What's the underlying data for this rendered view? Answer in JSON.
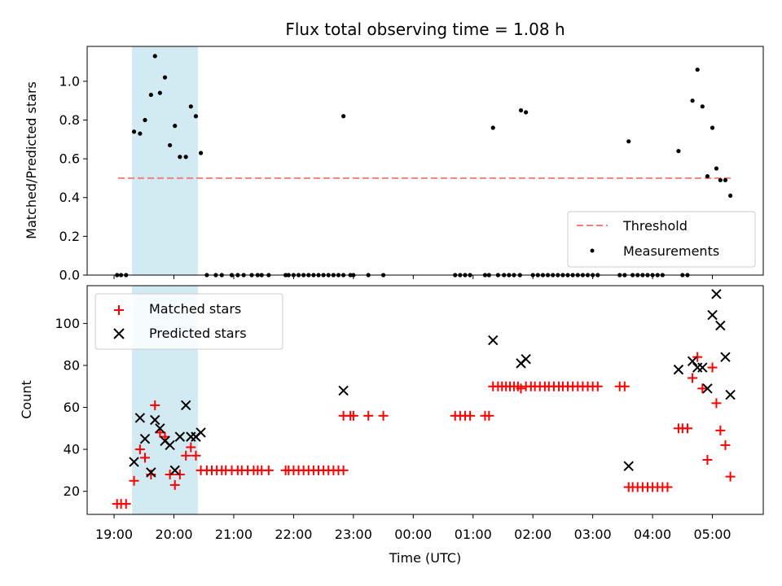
{
  "chart_data": {
    "title": "Flux total observing time = 1.08 h",
    "xlabel": "Time (UTC)",
    "x_tick_labels": [
      "19:00",
      "20:00",
      "21:00",
      "22:00",
      "23:00",
      "00:00",
      "01:00",
      "02:00",
      "03:00",
      "04:00",
      "05:00"
    ],
    "shaded_interval": [
      "19:18",
      "20:24"
    ],
    "colors": {
      "matched": "#ff0000",
      "predicted": "#000000",
      "threshold": "#f08080",
      "shade": "#add8e6"
    },
    "panels": [
      {
        "type": "scatter",
        "ylabel": "Matched/Predicted stars",
        "ylim": [
          0,
          1.18
        ],
        "y_tick_labels": [
          "0.0",
          "0.2",
          "0.4",
          "0.6",
          "0.8",
          "1.0"
        ],
        "legend": {
          "placement": "lower right",
          "entries": [
            "Threshold",
            "Measurements"
          ]
        },
        "threshold": 0.5,
        "series": [
          {
            "name": "Measurements",
            "points": [
              [
                "19:03",
                0
              ],
              [
                "19:07",
                0
              ],
              [
                "19:12",
                0
              ],
              [
                "19:20",
                0.74
              ],
              [
                "19:26",
                0.73
              ],
              [
                "19:31",
                0.8
              ],
              [
                "19:37",
                0.93
              ],
              [
                "19:41",
                1.13
              ],
              [
                "19:46",
                0.94
              ],
              [
                "19:51",
                1.02
              ],
              [
                "19:56",
                0.67
              ],
              [
                "20:01",
                0.77
              ],
              [
                "20:06",
                0.61
              ],
              [
                "20:12",
                0.61
              ],
              [
                "20:17",
                0.87
              ],
              [
                "20:22",
                0.82
              ],
              [
                "20:27",
                0.63
              ],
              [
                "20:33",
                0
              ],
              [
                "20:42",
                0
              ],
              [
                "20:48",
                0
              ],
              [
                "20:58",
                0
              ],
              [
                "21:04",
                0
              ],
              [
                "21:10",
                0
              ],
              [
                "21:18",
                0
              ],
              [
                "21:24",
                0
              ],
              [
                "21:28",
                0
              ],
              [
                "21:35",
                0
              ],
              [
                "21:52",
                0
              ],
              [
                "21:55",
                0
              ],
              [
                "22:00",
                0
              ],
              [
                "22:05",
                0
              ],
              [
                "22:10",
                0
              ],
              [
                "22:15",
                0
              ],
              [
                "22:20",
                0
              ],
              [
                "22:25",
                0
              ],
              [
                "22:30",
                0
              ],
              [
                "22:35",
                0
              ],
              [
                "22:40",
                0
              ],
              [
                "22:45",
                0
              ],
              [
                "22:50",
                0
              ],
              [
                "22:50",
                0.82
              ],
              [
                "22:57",
                0
              ],
              [
                "23:00",
                0
              ],
              [
                "23:15",
                0
              ],
              [
                "23:30",
                0
              ],
              [
                "00:42",
                0
              ],
              [
                "00:47",
                0
              ],
              [
                "00:52",
                0
              ],
              [
                "00:57",
                0
              ],
              [
                "01:12",
                0
              ],
              [
                "01:16",
                0
              ],
              [
                "01:20",
                0.76
              ],
              [
                "01:25",
                0
              ],
              [
                "01:31",
                0
              ],
              [
                "01:36",
                0
              ],
              [
                "01:41",
                0
              ],
              [
                "01:47",
                0
              ],
              [
                "01:48",
                0.85
              ],
              [
                "01:53",
                0.84
              ],
              [
                "02:00",
                0
              ],
              [
                "02:05",
                0
              ],
              [
                "02:10",
                0
              ],
              [
                "02:15",
                0
              ],
              [
                "02:20",
                0
              ],
              [
                "02:25",
                0
              ],
              [
                "02:30",
                0
              ],
              [
                "02:35",
                0
              ],
              [
                "02:40",
                0
              ],
              [
                "02:45",
                0
              ],
              [
                "02:50",
                0
              ],
              [
                "02:55",
                0
              ],
              [
                "03:00",
                0
              ],
              [
                "03:05",
                0
              ],
              [
                "03:27",
                0
              ],
              [
                "03:32",
                0
              ],
              [
                "03:36",
                0.69
              ],
              [
                "03:40",
                0
              ],
              [
                "03:45",
                0
              ],
              [
                "03:50",
                0
              ],
              [
                "03:55",
                0
              ],
              [
                "04:00",
                0
              ],
              [
                "04:05",
                0
              ],
              [
                "04:10",
                0
              ],
              [
                "04:26",
                0.64
              ],
              [
                "04:30",
                0
              ],
              [
                "04:35",
                0
              ],
              [
                "04:40",
                0.9
              ],
              [
                "04:45",
                1.06
              ],
              [
                "04:50",
                0.87
              ],
              [
                "04:55",
                0.51
              ],
              [
                "05:00",
                0.76
              ],
              [
                "05:04",
                0.55
              ],
              [
                "05:08",
                0.49
              ],
              [
                "05:13",
                0.49
              ],
              [
                "05:18",
                0.41
              ]
            ]
          }
        ]
      },
      {
        "type": "scatter",
        "ylabel": "Count",
        "ylim": [
          9,
          118
        ],
        "y_tick_labels": [
          "20",
          "40",
          "60",
          "80",
          "100"
        ],
        "legend": {
          "placement": "upper left",
          "entries": [
            "Matched stars",
            "Predicted stars"
          ]
        },
        "series": [
          {
            "name": "Matched stars",
            "marker": "+",
            "points": [
              [
                "19:03",
                14
              ],
              [
                "19:07",
                14
              ],
              [
                "19:12",
                14
              ],
              [
                "19:20",
                25
              ],
              [
                "19:26",
                40
              ],
              [
                "19:31",
                36
              ],
              [
                "19:37",
                28
              ],
              [
                "19:41",
                61
              ],
              [
                "19:46",
                48
              ],
              [
                "19:51",
                46
              ],
              [
                "19:56",
                28
              ],
              [
                "20:01",
                23
              ],
              [
                "20:06",
                28
              ],
              [
                "20:12",
                37
              ],
              [
                "20:17",
                41
              ],
              [
                "20:22",
                37
              ],
              [
                "20:27",
                30
              ],
              [
                "20:33",
                30
              ],
              [
                "20:38",
                30
              ],
              [
                "20:43",
                30
              ],
              [
                "20:48",
                30
              ],
              [
                "20:52",
                30
              ],
              [
                "20:58",
                30
              ],
              [
                "21:04",
                30
              ],
              [
                "21:08",
                30
              ],
              [
                "21:14",
                30
              ],
              [
                "21:20",
                30
              ],
              [
                "21:24",
                30
              ],
              [
                "21:28",
                30
              ],
              [
                "21:35",
                30
              ],
              [
                "21:52",
                30
              ],
              [
                "21:55",
                30
              ],
              [
                "22:00",
                30
              ],
              [
                "22:05",
                30
              ],
              [
                "22:10",
                30
              ],
              [
                "22:15",
                30
              ],
              [
                "22:20",
                30
              ],
              [
                "22:25",
                30
              ],
              [
                "22:30",
                30
              ],
              [
                "22:35",
                30
              ],
              [
                "22:40",
                30
              ],
              [
                "22:45",
                30
              ],
              [
                "22:50",
                30
              ],
              [
                "22:50",
                56
              ],
              [
                "22:57",
                56
              ],
              [
                "23:00",
                56
              ],
              [
                "23:15",
                56
              ],
              [
                "23:30",
                56
              ],
              [
                "00:42",
                56
              ],
              [
                "00:47",
                56
              ],
              [
                "00:52",
                56
              ],
              [
                "00:57",
                56
              ],
              [
                "01:12",
                56
              ],
              [
                "01:16",
                56
              ],
              [
                "01:20",
                70
              ],
              [
                "01:25",
                70
              ],
              [
                "01:29",
                70
              ],
              [
                "01:33",
                70
              ],
              [
                "01:37",
                70
              ],
              [
                "01:41",
                70
              ],
              [
                "01:45",
                70
              ],
              [
                "01:48",
                69
              ],
              [
                "01:53",
                70
              ],
              [
                "01:58",
                70
              ],
              [
                "02:02",
                70
              ],
              [
                "02:07",
                70
              ],
              [
                "02:12",
                70
              ],
              [
                "02:16",
                70
              ],
              [
                "02:21",
                70
              ],
              [
                "02:26",
                70
              ],
              [
                "02:30",
                70
              ],
              [
                "02:35",
                70
              ],
              [
                "02:40",
                70
              ],
              [
                "02:45",
                70
              ],
              [
                "02:50",
                70
              ],
              [
                "02:55",
                70
              ],
              [
                "03:00",
                70
              ],
              [
                "03:05",
                70
              ],
              [
                "03:27",
                70
              ],
              [
                "03:32",
                70
              ],
              [
                "03:36",
                22
              ],
              [
                "03:40",
                22
              ],
              [
                "03:45",
                22
              ],
              [
                "03:50",
                22
              ],
              [
                "03:55",
                22
              ],
              [
                "04:00",
                22
              ],
              [
                "04:05",
                22
              ],
              [
                "04:10",
                22
              ],
              [
                "04:15",
                22
              ],
              [
                "04:26",
                50
              ],
              [
                "04:30",
                50
              ],
              [
                "04:35",
                50
              ],
              [
                "04:40",
                74
              ],
              [
                "04:45",
                84
              ],
              [
                "04:50",
                69
              ],
              [
                "04:55",
                35
              ],
              [
                "05:00",
                79
              ],
              [
                "05:04",
                62
              ],
              [
                "05:08",
                49
              ],
              [
                "05:13",
                42
              ],
              [
                "05:18",
                27
              ]
            ]
          },
          {
            "name": "Predicted stars",
            "marker": "x",
            "points": [
              [
                "19:20",
                34
              ],
              [
                "19:26",
                55
              ],
              [
                "19:31",
                45
              ],
              [
                "19:37",
                29
              ],
              [
                "19:41",
                54
              ],
              [
                "19:46",
                50
              ],
              [
                "19:51",
                44
              ],
              [
                "19:56",
                42
              ],
              [
                "20:01",
                30
              ],
              [
                "20:06",
                46
              ],
              [
                "20:12",
                61
              ],
              [
                "20:17",
                46
              ],
              [
                "20:22",
                46
              ],
              [
                "20:27",
                48
              ],
              [
                "22:50",
                68
              ],
              [
                "01:20",
                92
              ],
              [
                "01:48",
                81
              ],
              [
                "01:53",
                83
              ],
              [
                "03:36",
                32
              ],
              [
                "04:26",
                78
              ],
              [
                "04:40",
                82
              ],
              [
                "04:45",
                79
              ],
              [
                "04:50",
                79
              ],
              [
                "04:55",
                69
              ],
              [
                "05:00",
                104
              ],
              [
                "05:04",
                114
              ],
              [
                "05:08",
                99
              ],
              [
                "05:13",
                84
              ],
              [
                "05:18",
                66
              ]
            ]
          }
        ]
      }
    ]
  }
}
